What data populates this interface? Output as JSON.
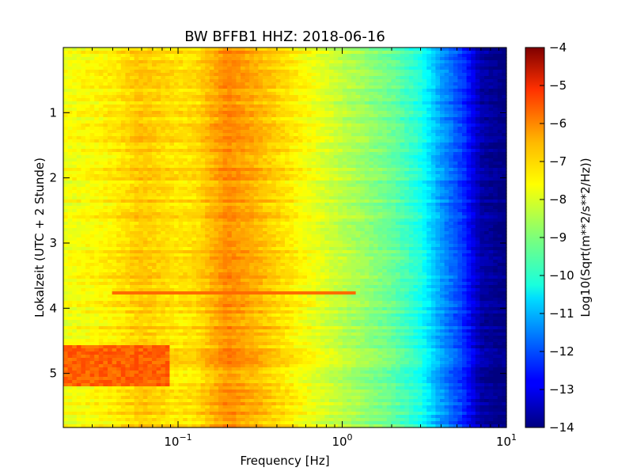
{
  "chart_data": {
    "type": "heatmap",
    "title": "BW BFFB1 HHZ: 2018-06-16",
    "xlabel": "Frequency [Hz]",
    "ylabel": "Lokalzeit (UTC + 2 Stunde)",
    "x_scale": "log",
    "xlim": [
      0.02,
      10
    ],
    "ylim": [
      0,
      5.83
    ],
    "y_inverted": true,
    "x_ticks": [
      {
        "value": 0.1,
        "base": "10",
        "exp": "−1"
      },
      {
        "value": 1,
        "base": "10",
        "exp": "0"
      },
      {
        "value": 10,
        "base": "10",
        "exp": "1"
      }
    ],
    "y_ticks": [
      {
        "value": 1,
        "label": "1"
      },
      {
        "value": 2,
        "label": "2"
      },
      {
        "value": 3,
        "label": "3"
      },
      {
        "value": 4,
        "label": "4"
      },
      {
        "value": 5,
        "label": "5"
      }
    ],
    "colorbar": {
      "label": "Log10(Sqrt(m**2/s**2/Hz))",
      "range": [
        -14,
        -4
      ],
      "colormap": "jet",
      "ticks": [
        {
          "value": -4,
          "label": "−4"
        },
        {
          "value": -5,
          "label": "−5"
        },
        {
          "value": -6,
          "label": "−6"
        },
        {
          "value": -7,
          "label": "−7"
        },
        {
          "value": -8,
          "label": "−8"
        },
        {
          "value": -9,
          "label": "−9"
        },
        {
          "value": -10,
          "label": "−10"
        },
        {
          "value": -11,
          "label": "−11"
        },
        {
          "value": -12,
          "label": "−12"
        },
        {
          "value": -13,
          "label": "−13"
        },
        {
          "value": -14,
          "label": "−14"
        }
      ]
    },
    "frequency_profile": [
      {
        "f": 0.02,
        "v": -7.9
      },
      {
        "f": 0.04,
        "v": -7.6
      },
      {
        "f": 0.06,
        "v": -7.2
      },
      {
        "f": 0.1,
        "v": -7.5
      },
      {
        "f": 0.13,
        "v": -7.4
      },
      {
        "f": 0.2,
        "v": -6.6
      },
      {
        "f": 0.3,
        "v": -7.0
      },
      {
        "f": 0.5,
        "v": -7.6
      },
      {
        "f": 1,
        "v": -8.4
      },
      {
        "f": 2,
        "v": -9.2
      },
      {
        "f": 3,
        "v": -10.0
      },
      {
        "f": 4,
        "v": -11.2
      },
      {
        "f": 5.5,
        "v": -12.3
      },
      {
        "f": 7,
        "v": -13.6
      },
      {
        "f": 10,
        "v": -14.0
      }
    ],
    "events": [
      {
        "time": 3.75,
        "f_min": 0.04,
        "f_max": 1.2,
        "v": -6.3
      },
      {
        "time_start": 4.55,
        "time_end": 5.2,
        "f_min": 0.02,
        "f_max": 0.09,
        "v": -6.2
      }
    ]
  }
}
